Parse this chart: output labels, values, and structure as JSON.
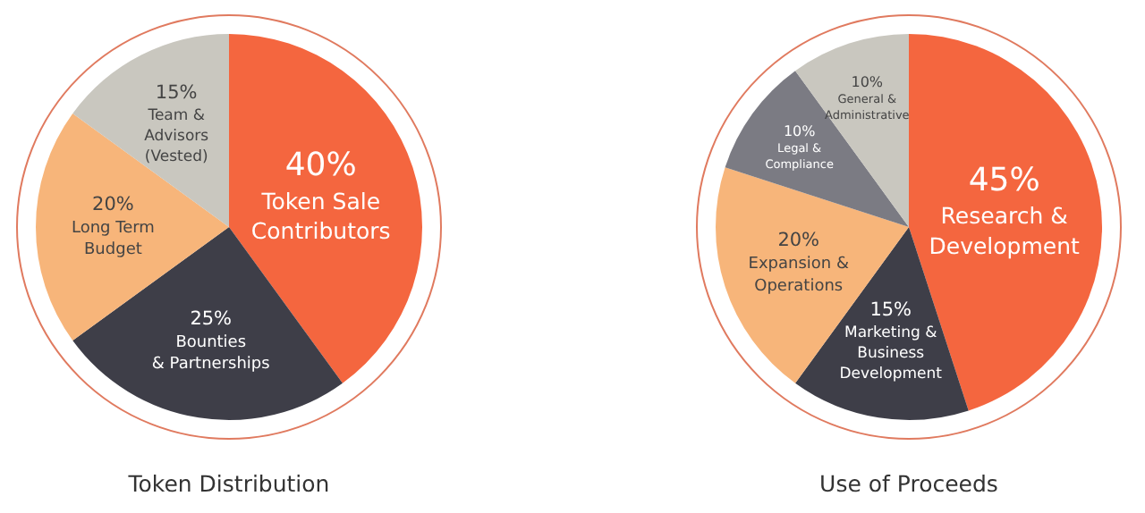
{
  "chart_data": [
    {
      "type": "pie",
      "title": "Token Distribution",
      "categories": [
        "Token Sale\nContributors",
        "Bounties\n& Partnerships",
        "Long Term\nBudget",
        "Team &\nAdvisors\n(Vested)"
      ],
      "values": [
        40,
        25,
        20,
        15
      ],
      "value_labels": [
        "40%",
        "25%",
        "20%",
        "15%"
      ],
      "colors": [
        "#f4663f",
        "#3e3e48",
        "#f7b57a",
        "#c9c7bf"
      ]
    },
    {
      "type": "pie",
      "title": "Use of Proceeds",
      "categories": [
        "Research &\nDevelopment",
        "Marketing &\nBusiness\nDevelopment",
        "Expansion &\nOperations",
        "Legal &\nCompliance",
        "General &\nAdministrative"
      ],
      "values": [
        45,
        15,
        20,
        10,
        10
      ],
      "value_labels": [
        "45%",
        "15%",
        "20%",
        "10%",
        "10%"
      ],
      "colors": [
        "#f4663f",
        "#3e3e48",
        "#f7b57a",
        "#7b7b83",
        "#c9c7bf"
      ]
    }
  ]
}
